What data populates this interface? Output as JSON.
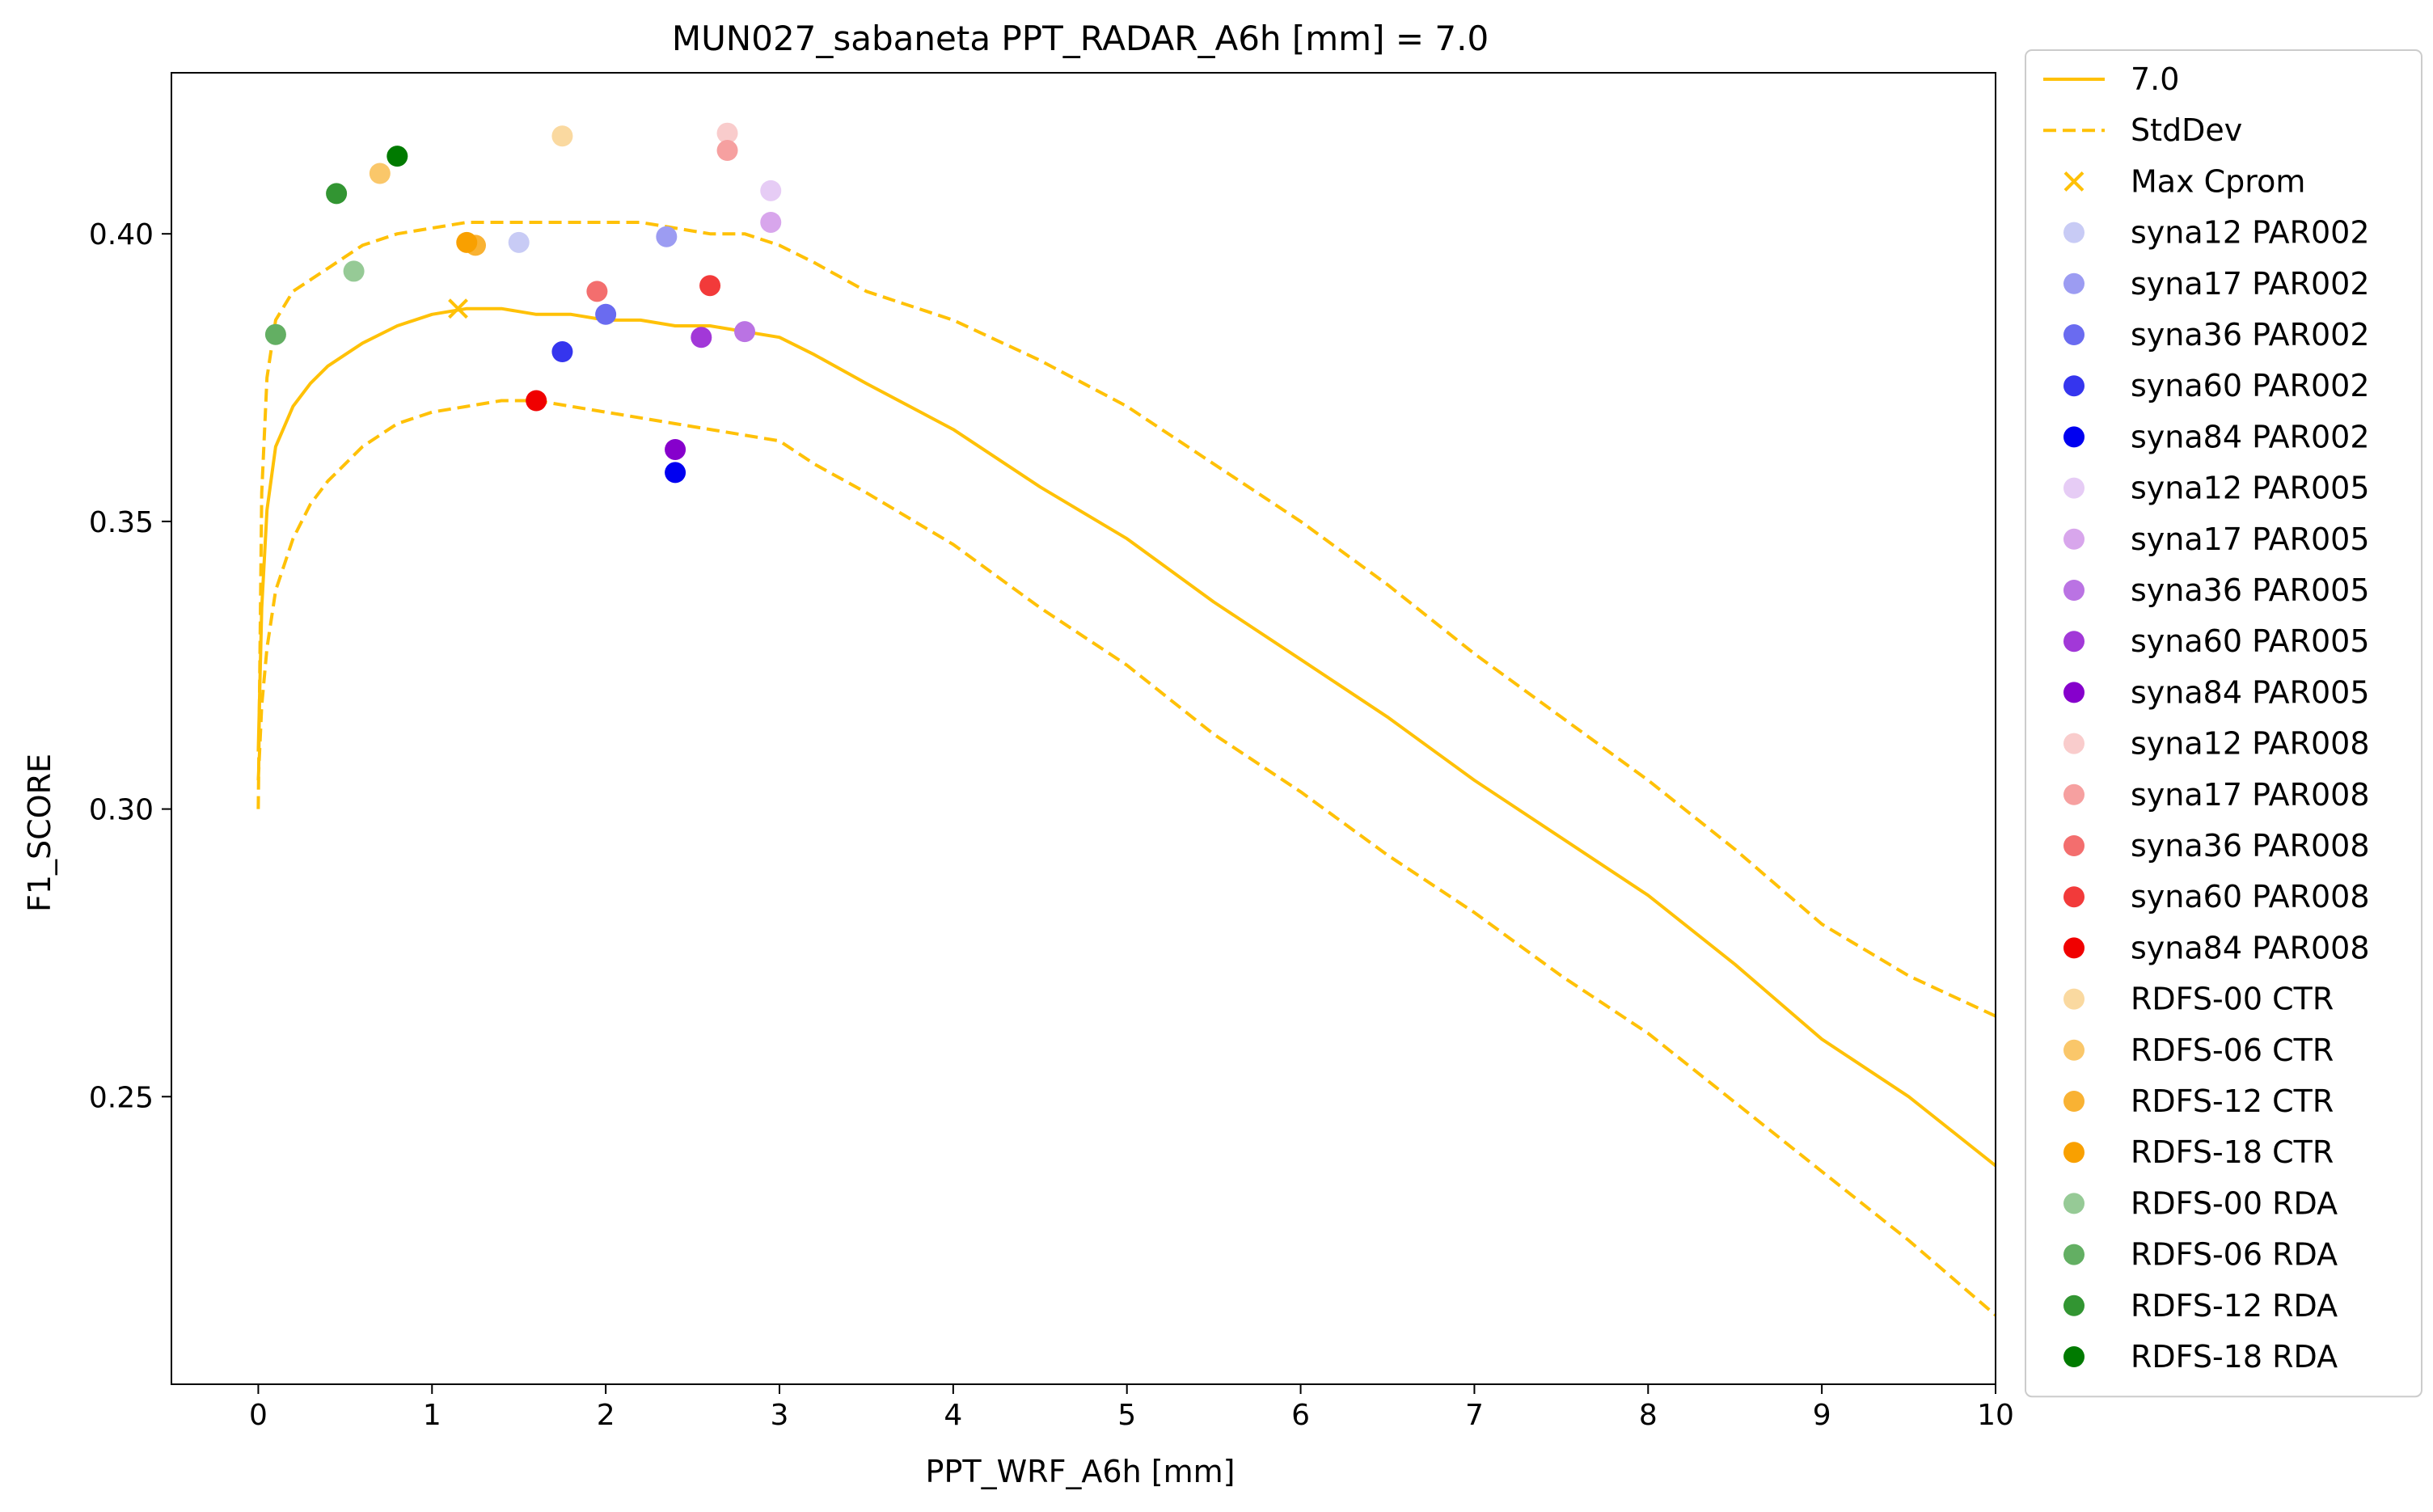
{
  "chart_data": {
    "type": "scatter",
    "title": "MUN027_sabaneta    PPT_RADAR_A6h [mm] = 7.0",
    "xlabel": "PPT_WRF_A6h [mm]",
    "ylabel": "F1_SCORE",
    "xlim": [
      -0.5,
      10
    ],
    "ylim": [
      0.2,
      0.428
    ],
    "xticks": [
      0,
      1,
      2,
      3,
      4,
      5,
      6,
      7,
      8,
      9,
      10
    ],
    "xtick_labels": [
      "0",
      "1",
      "2",
      "3",
      "4",
      "5",
      "6",
      "7",
      "8",
      "9",
      "10"
    ],
    "yticks": [
      0.25,
      0.3,
      0.35,
      0.4
    ],
    "ytick_labels": [
      "0.25",
      "0.30",
      "0.35",
      "0.40"
    ],
    "grid": false,
    "legend_placement": "outside-right",
    "lines": [
      {
        "name": "7.0",
        "style": "solid",
        "color": "#FFC107",
        "x": [
          0,
          0.02,
          0.05,
          0.1,
          0.2,
          0.3,
          0.4,
          0.5,
          0.6,
          0.8,
          1.0,
          1.2,
          1.4,
          1.6,
          1.8,
          2.0,
          2.2,
          2.4,
          2.6,
          2.8,
          3.0,
          3.2,
          3.5,
          4.0,
          4.5,
          5.0,
          5.5,
          6.0,
          6.5,
          7.0,
          7.5,
          8.0,
          8.5,
          9.0,
          9.5,
          10.0
        ],
        "y": [
          0.31,
          0.335,
          0.352,
          0.363,
          0.37,
          0.374,
          0.377,
          0.379,
          0.381,
          0.384,
          0.386,
          0.387,
          0.387,
          0.386,
          0.386,
          0.385,
          0.385,
          0.384,
          0.384,
          0.383,
          0.382,
          0.379,
          0.374,
          0.366,
          0.356,
          0.347,
          0.336,
          0.326,
          0.316,
          0.305,
          0.295,
          0.285,
          0.273,
          0.26,
          0.25,
          0.238
        ]
      },
      {
        "name": "StdDev",
        "style": "dashed",
        "color": "#FFC107",
        "x": [
          0,
          0.02,
          0.05,
          0.1,
          0.2,
          0.3,
          0.4,
          0.5,
          0.6,
          0.8,
          1.0,
          1.2,
          1.4,
          1.6,
          1.8,
          2.0,
          2.2,
          2.4,
          2.6,
          2.8,
          3.0,
          3.2,
          3.5,
          4.0,
          4.5,
          5.0,
          5.5,
          6.0,
          6.5,
          7.0,
          7.5,
          8.0,
          8.5,
          9.0,
          9.5,
          10.0
        ],
        "y": [
          0.3,
          0.355,
          0.375,
          0.385,
          0.39,
          0.392,
          0.394,
          0.396,
          0.398,
          0.4,
          0.401,
          0.402,
          0.402,
          0.402,
          0.402,
          0.402,
          0.402,
          0.401,
          0.4,
          0.4,
          0.398,
          0.395,
          0.39,
          0.385,
          0.378,
          0.37,
          0.36,
          0.35,
          0.339,
          0.327,
          0.316,
          0.305,
          0.293,
          0.28,
          0.271,
          0.264
        ]
      },
      {
        "name": "StdDev lower",
        "style": "dashed",
        "color": "#FFC107",
        "x": [
          0,
          0.02,
          0.05,
          0.1,
          0.2,
          0.3,
          0.4,
          0.5,
          0.6,
          0.8,
          1.0,
          1.2,
          1.4,
          1.6,
          1.8,
          2.0,
          2.2,
          2.4,
          2.6,
          2.8,
          3.0,
          3.2,
          3.5,
          4.0,
          4.5,
          5.0,
          5.5,
          6.0,
          6.5,
          7.0,
          7.5,
          8.0,
          8.5,
          9.0,
          9.5,
          10.0
        ],
        "y": [
          0.305,
          0.318,
          0.328,
          0.338,
          0.347,
          0.353,
          0.357,
          0.36,
          0.363,
          0.367,
          0.369,
          0.37,
          0.371,
          0.371,
          0.37,
          0.369,
          0.368,
          0.367,
          0.366,
          0.365,
          0.364,
          0.36,
          0.355,
          0.346,
          0.335,
          0.325,
          0.313,
          0.303,
          0.292,
          0.282,
          0.271,
          0.261,
          0.249,
          0.237,
          0.225,
          0.212
        ]
      }
    ],
    "max_marker": {
      "name": "Max Cprom",
      "x": 1.15,
      "y": 0.387,
      "color": "#FFC107"
    },
    "series": [
      {
        "name": "syna12 PAR002",
        "color": "#C8CBF5",
        "x": 1.5,
        "y": 0.3985
      },
      {
        "name": "syna17 PAR002",
        "color": "#9C9CF2",
        "x": 2.35,
        "y": 0.3995
      },
      {
        "name": "syna36 PAR002",
        "color": "#6A6BF0",
        "x": 2.0,
        "y": 0.386
      },
      {
        "name": "syna60 PAR002",
        "color": "#3535EE",
        "x": 1.75,
        "y": 0.3795
      },
      {
        "name": "syna84 PAR002",
        "color": "#0000F0",
        "x": 2.4,
        "y": 0.3585
      },
      {
        "name": "syna12 PAR005",
        "color": "#E6CCF5",
        "x": 2.95,
        "y": 0.4075
      },
      {
        "name": "syna17 PAR005",
        "color": "#D8A6EC",
        "x": 2.95,
        "y": 0.402
      },
      {
        "name": "syna36 PAR005",
        "color": "#BA73E3",
        "x": 2.8,
        "y": 0.383
      },
      {
        "name": "syna60 PAR005",
        "color": "#A238D8",
        "x": 2.55,
        "y": 0.382
      },
      {
        "name": "syna84 PAR005",
        "color": "#8600CC",
        "x": 2.4,
        "y": 0.3625
      },
      {
        "name": "syna12 PAR008",
        "color": "#F9CCCC",
        "x": 2.7,
        "y": 0.4175
      },
      {
        "name": "syna17 PAR008",
        "color": "#F6A0A0",
        "x": 2.7,
        "y": 0.4145
      },
      {
        "name": "syna36 PAR008",
        "color": "#F36E6E",
        "x": 1.95,
        "y": 0.39
      },
      {
        "name": "syna60 PAR008",
        "color": "#F23A3A",
        "x": 2.6,
        "y": 0.391
      },
      {
        "name": "syna84 PAR008",
        "color": "#F00000",
        "x": 1.6,
        "y": 0.371
      },
      {
        "name": "RDFS-00 CTR",
        "color": "#FAD9A0",
        "x": 1.75,
        "y": 0.417
      },
      {
        "name": "RDFS-06 CTR",
        "color": "#FAC76A",
        "x": 0.7,
        "y": 0.4105
      },
      {
        "name": "RDFS-12 CTR",
        "color": "#F9B233",
        "x": 1.25,
        "y": 0.398
      },
      {
        "name": "RDFS-18 CTR",
        "color": "#F9A000",
        "x": 1.2,
        "y": 0.3985
      },
      {
        "name": "RDFS-00 RDA",
        "color": "#96CA96",
        "x": 0.55,
        "y": 0.3935
      },
      {
        "name": "RDFS-06 RDA",
        "color": "#63AF63",
        "x": 0.1,
        "y": 0.3825
      },
      {
        "name": "RDFS-12 RDA",
        "color": "#329532",
        "x": 0.45,
        "y": 0.407
      },
      {
        "name": "RDFS-18 RDA",
        "color": "#007A00",
        "x": 0.8,
        "y": 0.4135
      }
    ],
    "legend": [
      {
        "label": "7.0",
        "kind": "line",
        "color": "#FFC107"
      },
      {
        "label": "StdDev",
        "kind": "dashed",
        "color": "#FFC107"
      },
      {
        "label": "Max Cprom",
        "kind": "cross",
        "color": "#FFC107"
      },
      {
        "label": "syna12 PAR002",
        "kind": "dot",
        "color": "#C8CBF5"
      },
      {
        "label": "syna17 PAR002",
        "kind": "dot",
        "color": "#9C9CF2"
      },
      {
        "label": "syna36 PAR002",
        "kind": "dot",
        "color": "#6A6BF0"
      },
      {
        "label": "syna60 PAR002",
        "kind": "dot",
        "color": "#3535EE"
      },
      {
        "label": "syna84 PAR002",
        "kind": "dot",
        "color": "#0000F0"
      },
      {
        "label": "syna12 PAR005",
        "kind": "dot",
        "color": "#E6CCF5"
      },
      {
        "label": "syna17 PAR005",
        "kind": "dot",
        "color": "#D8A6EC"
      },
      {
        "label": "syna36 PAR005",
        "kind": "dot",
        "color": "#BA73E3"
      },
      {
        "label": "syna60 PAR005",
        "kind": "dot",
        "color": "#A238D8"
      },
      {
        "label": "syna84 PAR005",
        "kind": "dot",
        "color": "#8600CC"
      },
      {
        "label": "syna12 PAR008",
        "kind": "dot",
        "color": "#F9CCCC"
      },
      {
        "label": "syna17 PAR008",
        "kind": "dot",
        "color": "#F6A0A0"
      },
      {
        "label": "syna36 PAR008",
        "kind": "dot",
        "color": "#F36E6E"
      },
      {
        "label": "syna60 PAR008",
        "kind": "dot",
        "color": "#F23A3A"
      },
      {
        "label": "syna84 PAR008",
        "kind": "dot",
        "color": "#F00000"
      },
      {
        "label": " RDFS-00 CTR",
        "kind": "dot",
        "color": "#FAD9A0"
      },
      {
        "label": " RDFS-06 CTR",
        "kind": "dot",
        "color": "#FAC76A"
      },
      {
        "label": " RDFS-12 CTR",
        "kind": "dot",
        "color": "#F9B233"
      },
      {
        "label": " RDFS-18 CTR",
        "kind": "dot",
        "color": "#F9A000"
      },
      {
        "label": " RDFS-00 RDA",
        "kind": "dot",
        "color": "#96CA96"
      },
      {
        "label": " RDFS-06 RDA",
        "kind": "dot",
        "color": "#63AF63"
      },
      {
        "label": " RDFS-12 RDA",
        "kind": "dot",
        "color": "#329532"
      },
      {
        "label": " RDFS-18 RDA",
        "kind": "dot",
        "color": "#007A00"
      }
    ]
  }
}
